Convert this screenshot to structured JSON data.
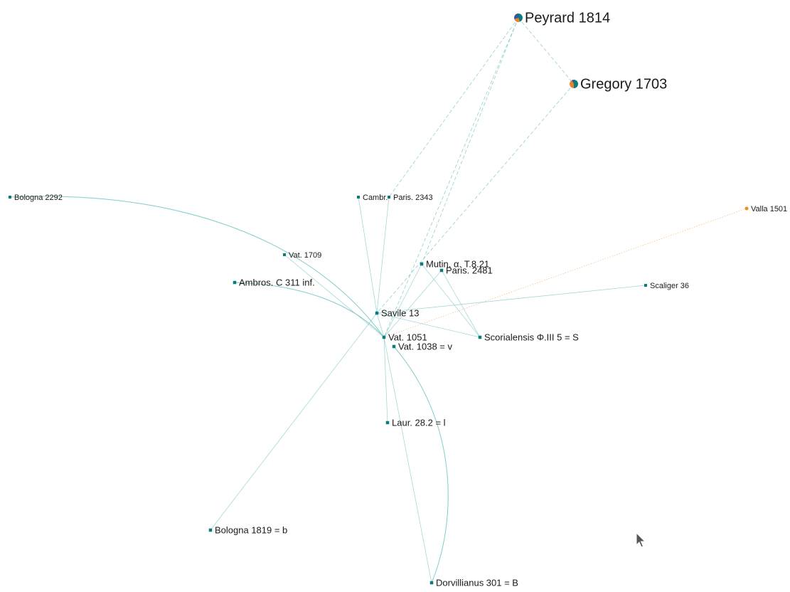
{
  "colors": {
    "node": "#0d7b7b",
    "edge": "#7fc8c8",
    "valla": "#f28a24",
    "pie_teal": "#0d7b7b",
    "pie_orange": "#e8822a",
    "pie_blue": "#2d5aa0"
  },
  "nodes": [
    {
      "id": "peyrard",
      "label": "Peyrard 1814",
      "kind": "pie"
    },
    {
      "id": "gregory",
      "label": "Gregory 1703",
      "kind": "pie"
    },
    {
      "id": "bologna2292",
      "label": "Bologna 2292",
      "kind": "square"
    },
    {
      "id": "cambr",
      "label": "Cambr.",
      "kind": "square"
    },
    {
      "id": "paris2343",
      "label": "Paris. 2343",
      "kind": "square"
    },
    {
      "id": "valla",
      "label": "Valla 1501",
      "kind": "dot"
    },
    {
      "id": "vat1709",
      "label": "Vat. 1709",
      "kind": "square"
    },
    {
      "id": "mutin",
      "label": "Mutin. α. T.8.21",
      "kind": "square"
    },
    {
      "id": "paris2481",
      "label": "Paris. 2481",
      "kind": "square"
    },
    {
      "id": "ambros",
      "label": "Ambros. C 311 inf.",
      "kind": "square"
    },
    {
      "id": "scaliger",
      "label": "Scaliger 36",
      "kind": "square"
    },
    {
      "id": "savile",
      "label": "Savile 13",
      "kind": "square"
    },
    {
      "id": "vat1051",
      "label": "Vat. 1051",
      "kind": "square"
    },
    {
      "id": "scorial",
      "label": "Scorialensis Φ.III 5 = S",
      "kind": "square"
    },
    {
      "id": "vat1038",
      "label": "Vat. 1038 = v",
      "kind": "square"
    },
    {
      "id": "laur",
      "label": "Laur. 28.2 = l",
      "kind": "square"
    },
    {
      "id": "bologna1819",
      "label": "Bologna 1819 = b",
      "kind": "square"
    },
    {
      "id": "dorvill",
      "label": "Dorvillianus 301 = B",
      "kind": "square"
    }
  ],
  "edges": [
    {
      "from": "peyrard",
      "to": "gregory",
      "style": "dashed"
    },
    {
      "from": "peyrard",
      "to": "paris2343",
      "style": "dashed"
    },
    {
      "from": "peyrard",
      "to": "mutin",
      "style": "dashed"
    },
    {
      "from": "peyrard",
      "to": "vat1051",
      "style": "dashed"
    },
    {
      "from": "gregory",
      "to": "savile",
      "style": "dashed"
    },
    {
      "from": "valla",
      "to": "vat1051",
      "style": "dotted"
    },
    {
      "from": "bologna2292",
      "to": "vat1051",
      "style": "solid",
      "curve": "arc"
    },
    {
      "from": "cambr",
      "to": "savile",
      "style": "solid"
    },
    {
      "from": "paris2343",
      "to": "savile",
      "style": "solid"
    },
    {
      "from": "vat1709",
      "to": "vat1051",
      "style": "solid"
    },
    {
      "from": "ambros",
      "to": "vat1051",
      "style": "solid",
      "curve": "arc-small"
    },
    {
      "from": "mutin",
      "to": "vat1051",
      "style": "solid"
    },
    {
      "from": "mutin",
      "to": "scorial",
      "style": "solid"
    },
    {
      "from": "paris2481",
      "to": "vat1051",
      "style": "solid"
    },
    {
      "from": "paris2481",
      "to": "scorial",
      "style": "solid"
    },
    {
      "from": "scaliger",
      "to": "savile",
      "style": "solid"
    },
    {
      "from": "savile",
      "to": "scorial",
      "style": "solid"
    },
    {
      "from": "savile",
      "to": "vat1051",
      "style": "solid"
    },
    {
      "from": "vat1051",
      "to": "laur",
      "style": "solid"
    },
    {
      "from": "vat1051",
      "to": "dorvill",
      "style": "solid"
    },
    {
      "from": "vat1038",
      "to": "dorvill",
      "style": "solid",
      "curve": "arc-right"
    },
    {
      "from": "savile",
      "to": "bologna1819",
      "style": "solid"
    }
  ]
}
